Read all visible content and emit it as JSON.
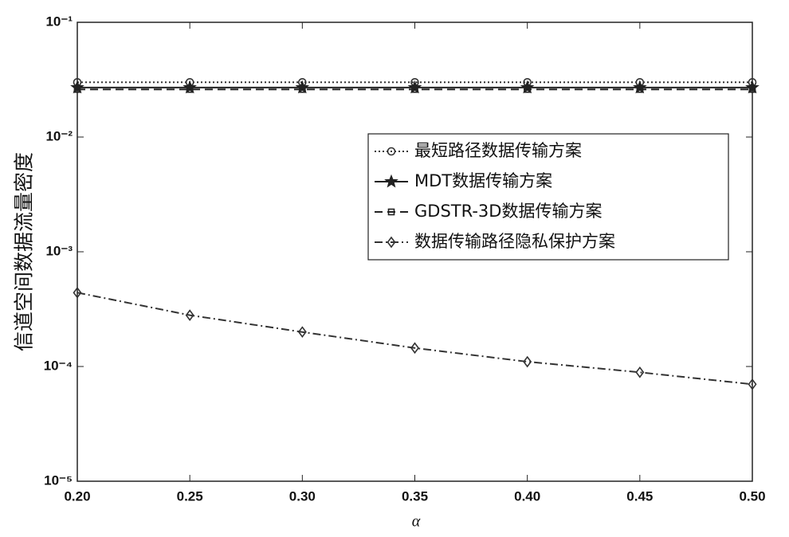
{
  "chart_data": {
    "type": "line",
    "xlabel": "α",
    "ylabel": "信道空间数据流量密度",
    "x": [
      0.2,
      0.25,
      0.3,
      0.35,
      0.4,
      0.45,
      0.5
    ],
    "xlim": [
      0.2,
      0.5
    ],
    "xticks": [
      {
        "value": 0.2,
        "label": "0.20"
      },
      {
        "value": 0.25,
        "label": "0.25"
      },
      {
        "value": 0.3,
        "label": "0.30"
      },
      {
        "value": 0.35,
        "label": "0.35"
      },
      {
        "value": 0.4,
        "label": "0.40"
      },
      {
        "value": 0.45,
        "label": "0.45"
      },
      {
        "value": 0.5,
        "label": "0.50"
      }
    ],
    "ylim": [
      1e-05,
      0.1
    ],
    "yticks": [
      {
        "value": 1e-05,
        "label": "10⁻⁵"
      },
      {
        "value": 0.0001,
        "label": "10⁻⁴"
      },
      {
        "value": 0.001,
        "label": "10⁻³"
      },
      {
        "value": 0.01,
        "label": "10⁻²"
      },
      {
        "value": 0.1,
        "label": "10⁻¹"
      }
    ],
    "yscale": "log",
    "legend": "center right",
    "series": [
      {
        "name": "最短路径数据传输方案",
        "color": "#333333",
        "dash": "2,3",
        "marker": "circle",
        "values": [
          0.03,
          0.03,
          0.03,
          0.03,
          0.03,
          0.03,
          0.03
        ]
      },
      {
        "name": "MDT数据传输方案",
        "color": "#222222",
        "dash": "none",
        "marker": "star",
        "values": [
          0.027,
          0.027,
          0.027,
          0.027,
          0.027,
          0.027,
          0.027
        ]
      },
      {
        "name": "GDSTR-3D数据传输方案",
        "color": "#222222",
        "dash": "10,6",
        "marker": "square",
        "values": [
          0.026,
          0.026,
          0.026,
          0.026,
          0.026,
          0.026,
          0.026
        ]
      },
      {
        "name": "数据传输路径隐私保护方案",
        "color": "#333333",
        "dash": "10,4,2,4",
        "marker": "diamond",
        "values": [
          0.00044,
          0.00028,
          0.0002,
          0.000145,
          0.00011,
          8.9e-05,
          7e-05
        ]
      }
    ]
  }
}
